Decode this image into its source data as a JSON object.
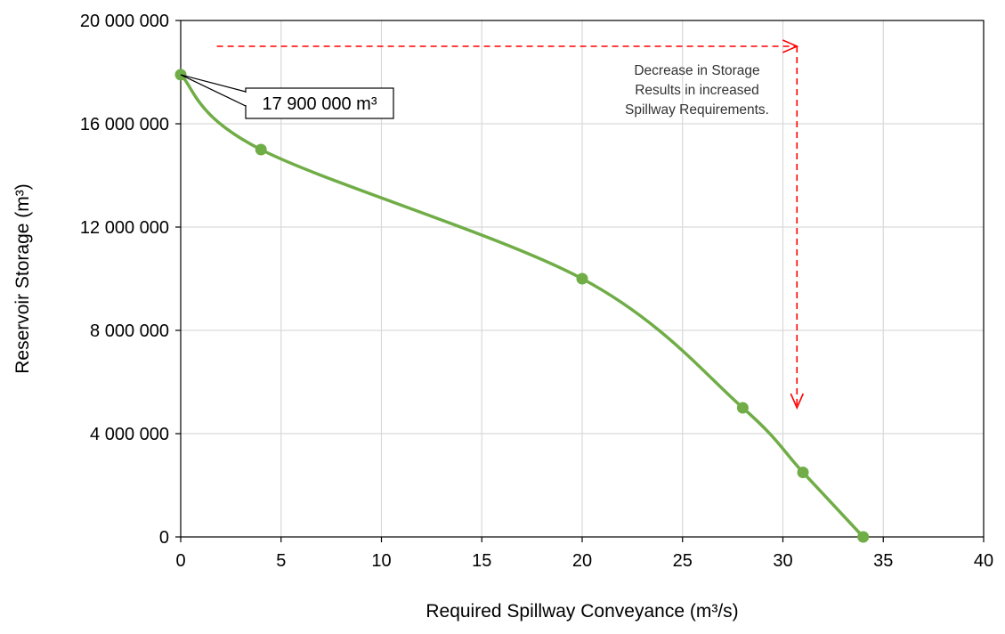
{
  "chart_data": {
    "type": "line",
    "smooth": true,
    "title": "",
    "xlabel": "Required Spillway Conveyance (m³/s)",
    "ylabel": "Reservoir Storage (m³)",
    "xlim": [
      0,
      40
    ],
    "ylim": [
      0,
      20000000
    ],
    "grid": true,
    "x_ticks": [
      0,
      5,
      10,
      15,
      20,
      25,
      30,
      35,
      40
    ],
    "x_tick_labels": [
      "0",
      "5",
      "10",
      "15",
      "20",
      "25",
      "30",
      "35",
      "40"
    ],
    "y_ticks": [
      0,
      4000000,
      8000000,
      12000000,
      16000000,
      20000000
    ],
    "y_tick_labels": [
      "0",
      "4 000 000",
      "8 000 000",
      "12 000 000",
      "16 000 000",
      "20 000 000"
    ],
    "series": [
      {
        "color": "#70AD47",
        "x": [
          0,
          4,
          20,
          28,
          31,
          34
        ],
        "y": [
          17900000,
          15000000,
          10000000,
          5000000,
          2500000,
          0
        ]
      }
    ],
    "annotations": [
      {
        "type": "callout",
        "text": "17 900 000 m³",
        "anchor_point": {
          "x": 0,
          "y": 17900000
        }
      },
      {
        "type": "note",
        "lines": [
          "Decrease in Storage",
          "Results in increased",
          "Spillway Requirements."
        ],
        "color": "#333333"
      },
      {
        "type": "dashed-arrow",
        "color": "#FF0000",
        "direction": "right",
        "from": {
          "x": 1.8,
          "y": 19000000
        },
        "to": {
          "x": 30.7,
          "y": 19000000
        }
      },
      {
        "type": "dashed-arrow",
        "color": "#FF0000",
        "direction": "down",
        "from": {
          "x": 30.7,
          "y": 19000000
        },
        "to": {
          "x": 30.7,
          "y": 5000000
        }
      }
    ]
  }
}
